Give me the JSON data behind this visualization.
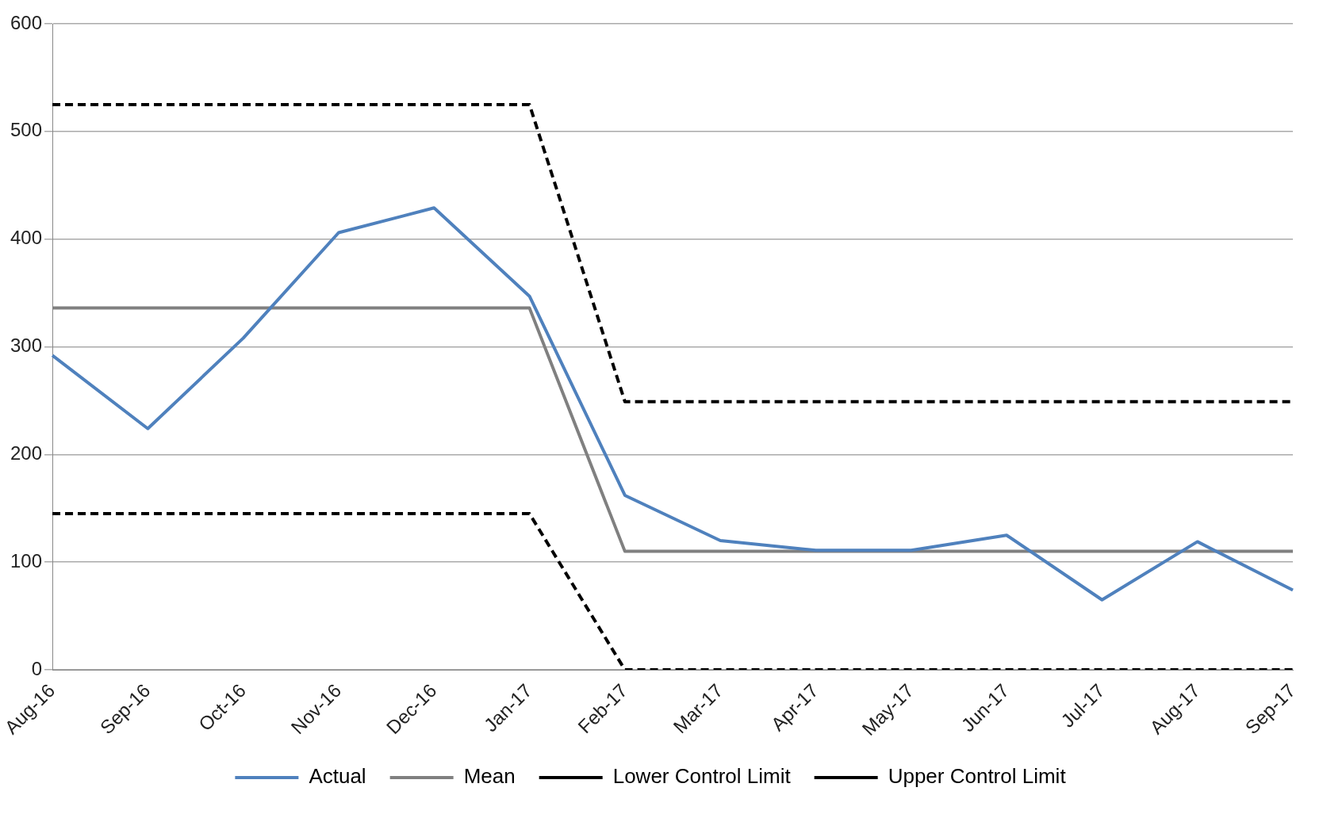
{
  "chart_data": {
    "type": "line",
    "categories": [
      "Aug-16",
      "Sep-16",
      "Oct-16",
      "Nov-16",
      "Dec-16",
      "Jan-17",
      "Feb-17",
      "Mar-17",
      "Apr-17",
      "May-17",
      "Jun-17",
      "Jul-17",
      "Aug-17",
      "Sep-17"
    ],
    "series": [
      {
        "name": "Actual",
        "color": "#4f81bd",
        "line_style": "solid",
        "values": [
          292,
          224,
          308,
          406,
          429,
          347,
          162,
          120,
          111,
          111,
          125,
          65,
          119,
          74
        ]
      },
      {
        "name": "Mean",
        "color": "#808080",
        "line_style": "solid",
        "values": [
          336,
          336,
          336,
          336,
          336,
          336,
          110,
          110,
          110,
          110,
          110,
          110,
          110,
          110
        ]
      },
      {
        "name": "Lower Control Limit",
        "color": "#000000",
        "line_style": "dashed",
        "values": [
          145,
          145,
          145,
          145,
          145,
          145,
          0,
          0,
          0,
          0,
          0,
          0,
          0,
          0
        ]
      },
      {
        "name": "Upper Control Limit",
        "color": "#000000",
        "line_style": "dashed",
        "values": [
          525,
          525,
          525,
          525,
          525,
          525,
          249,
          249,
          249,
          249,
          249,
          249,
          249,
          249
        ]
      }
    ],
    "ylim": [
      0,
      600
    ],
    "yticks": [
      0,
      100,
      200,
      300,
      400,
      500,
      600
    ],
    "grid": "y",
    "legend": "bottom",
    "marker": "none"
  }
}
